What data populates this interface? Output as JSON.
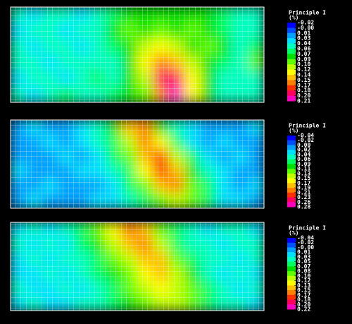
{
  "chart_data": [
    {
      "type": "heatmap",
      "title": "Principle I",
      "unit": "(%)",
      "colors": [
        "#0000ff",
        "#0050ff",
        "#00a0ff",
        "#00e0ff",
        "#00ffc0",
        "#00ff60",
        "#00e000",
        "#60ff00",
        "#c0ff00",
        "#ffff00",
        "#ffc000",
        "#ff8000",
        "#ff3000",
        "#ff0060",
        "#ff00c0"
      ],
      "colorbar_ticks": [
        -0.02,
        {
          "value": 0,
          "label": "-0.00"
        },
        0.01,
        0.03,
        0.04,
        0.06,
        0.07,
        0.09,
        {
          "value": 0.1,
          "label": "0.10"
        },
        0.12,
        0.14,
        0.15,
        0.17,
        0.18,
        {
          "value": 0.2,
          "label": "0.20"
        },
        0.21
      ],
      "z": [
        [
          0.04,
          0.03,
          0.05,
          0.04,
          0.03,
          0.05,
          0.06,
          0.08,
          0.08,
          0.07,
          0.08,
          0.07,
          0.08,
          0.06,
          0.05,
          0.04
        ],
        [
          0.03,
          0.05,
          0.04,
          0.03,
          0.05,
          0.04,
          0.07,
          0.09,
          0.08,
          0.09,
          0.08,
          0.09,
          0.07,
          0.06,
          0.05,
          0.04
        ],
        [
          0.05,
          0.03,
          0.04,
          0.05,
          0.03,
          0.05,
          0.06,
          0.08,
          0.1,
          0.13,
          0.1,
          0.08,
          0.09,
          0.07,
          0.05,
          0.06
        ],
        [
          0.04,
          0.05,
          0.03,
          0.04,
          0.05,
          0.04,
          0.05,
          0.08,
          0.12,
          0.16,
          0.14,
          0.1,
          0.08,
          0.06,
          0.04,
          0.09
        ],
        [
          0.03,
          0.04,
          0.05,
          0.03,
          0.04,
          0.06,
          0.05,
          0.07,
          0.11,
          0.18,
          0.19,
          0.13,
          0.08,
          0.05,
          0.05,
          0.04
        ],
        [
          0.05,
          0.03,
          0.04,
          0.06,
          0.04,
          0.05,
          0.06,
          0.07,
          0.09,
          0.15,
          0.2,
          0.12,
          0.07,
          0.05,
          0.04,
          0.05
        ]
      ]
    },
    {
      "type": "heatmap",
      "title": "Principle I",
      "unit": "(%)",
      "colors": [
        "#0000ff",
        "#0050ff",
        "#00a0ff",
        "#00e0ff",
        "#00ffc0",
        "#00ff60",
        "#00e000",
        "#60ff00",
        "#c0ff00",
        "#ffff00",
        "#ffc000",
        "#ff8000",
        "#ff3000",
        "#ff0060",
        "#ff00c0"
      ],
      "colorbar_ticks": [
        -0.04,
        -0.02,
        {
          "value": 0,
          "label": "0.00"
        },
        0.02,
        0.04,
        0.06,
        0.09,
        0.11,
        0.13,
        0.15,
        0.17,
        0.19,
        0.21,
        0.23,
        0.26,
        0.28
      ],
      "z": [
        [
          0.01,
          0.02,
          0.0,
          0.01,
          0.03,
          0.05,
          0.1,
          0.18,
          0.2,
          0.1,
          0.04,
          0.02,
          0.01,
          0.0,
          0.01,
          0.02
        ],
        [
          0.0,
          0.01,
          0.02,
          0.0,
          0.02,
          0.04,
          0.08,
          0.14,
          0.19,
          0.16,
          0.08,
          0.03,
          0.01,
          0.02,
          0.0,
          0.01
        ],
        [
          0.01,
          0.0,
          0.01,
          0.02,
          0.01,
          0.03,
          0.06,
          0.11,
          0.18,
          0.21,
          0.13,
          0.06,
          0.02,
          0.01,
          0.02,
          0.0
        ],
        [
          0.02,
          0.01,
          0.0,
          0.01,
          0.02,
          0.02,
          0.04,
          0.08,
          0.15,
          0.22,
          0.17,
          0.09,
          0.04,
          0.02,
          0.01,
          0.01
        ],
        [
          0.0,
          0.01,
          0.02,
          0.01,
          0.0,
          0.01,
          0.03,
          0.06,
          0.11,
          0.17,
          0.19,
          0.12,
          0.06,
          0.03,
          0.01,
          0.02
        ],
        [
          0.01,
          0.02,
          0.01,
          0.0,
          0.01,
          0.02,
          0.02,
          0.05,
          0.08,
          0.12,
          0.14,
          0.11,
          0.07,
          0.03,
          0.02,
          0.01
        ]
      ]
    },
    {
      "type": "heatmap",
      "title": "Principle I",
      "unit": "(%)",
      "colors": [
        "#0000ff",
        "#0050ff",
        "#00a0ff",
        "#00e0ff",
        "#00ffc0",
        "#00ff60",
        "#00e000",
        "#60ff00",
        "#c0ff00",
        "#ffff00",
        "#ffc000",
        "#ff8000",
        "#ff3000",
        "#ff0060",
        "#ff00c0"
      ],
      "colorbar_ticks": [
        -0.04,
        -0.02,
        {
          "value": 0,
          "label": "-0.00"
        },
        0.01,
        0.03,
        0.05,
        0.07,
        0.08,
        {
          "value": 0.1,
          "label": "0.10"
        },
        0.12,
        0.13,
        0.15,
        0.17,
        0.18,
        {
          "value": 0.2,
          "label": "0.20"
        },
        0.22
      ],
      "z": [
        [
          0.02,
          0.03,
          0.02,
          0.04,
          0.05,
          0.08,
          0.12,
          0.15,
          0.13,
          0.08,
          0.05,
          0.03,
          0.02,
          0.04,
          0.03,
          0.02
        ],
        [
          0.03,
          0.01,
          0.03,
          0.02,
          0.05,
          0.07,
          0.1,
          0.14,
          0.16,
          0.11,
          0.06,
          0.04,
          0.03,
          0.02,
          0.04,
          0.03
        ],
        [
          0.02,
          0.03,
          0.01,
          0.03,
          0.04,
          0.06,
          0.08,
          0.11,
          0.14,
          0.13,
          0.08,
          0.05,
          0.04,
          0.03,
          0.02,
          0.04
        ],
        [
          0.01,
          0.02,
          0.03,
          0.02,
          0.03,
          0.05,
          0.07,
          0.09,
          0.12,
          0.14,
          0.1,
          0.07,
          0.04,
          0.02,
          0.03,
          0.02
        ],
        [
          0.03,
          0.01,
          0.02,
          0.03,
          0.02,
          0.04,
          0.06,
          0.08,
          0.1,
          0.12,
          0.11,
          0.08,
          0.05,
          0.03,
          0.02,
          0.03
        ],
        [
          0.02,
          0.03,
          0.01,
          0.02,
          0.03,
          0.04,
          0.05,
          0.07,
          0.08,
          0.1,
          0.11,
          0.09,
          0.06,
          0.04,
          0.03,
          0.02
        ]
      ]
    }
  ]
}
